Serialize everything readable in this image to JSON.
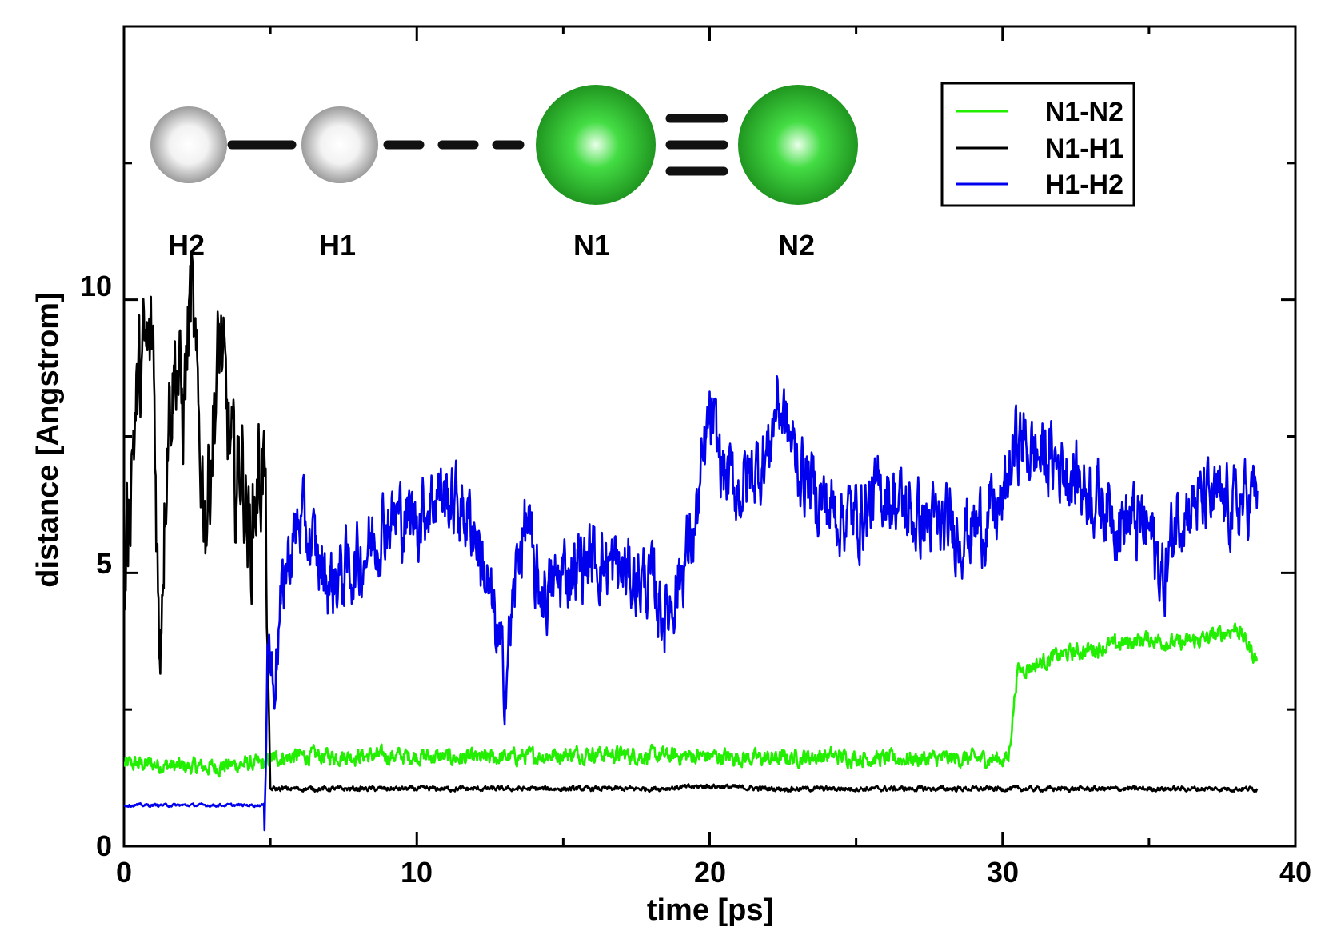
{
  "chart_data": {
    "type": "line",
    "xlabel": "time [ps]",
    "ylabel": "distance [Angstrom]",
    "xlim": [
      0,
      40
    ],
    "ylim": [
      0,
      15
    ],
    "x_ticks": [
      0,
      10,
      20,
      30,
      40
    ],
    "x_tick_labels": [
      "0",
      "10",
      "20",
      "30",
      "40"
    ],
    "y_ticks": [
      0,
      5,
      10
    ],
    "y_tick_labels": [
      "0",
      "5",
      "10"
    ],
    "y_minor_ticks": [
      2.5,
      7.5,
      12.5
    ],
    "x_minor_ticks": [
      5,
      15,
      25,
      35
    ],
    "grid": false,
    "legend_position": "top-right",
    "series": [
      {
        "name": "N1-N2",
        "color": "#22ee00",
        "x": [
          0,
          1,
          2,
          3,
          4,
          4.8,
          5,
          6,
          8,
          10,
          12,
          14,
          16,
          18,
          20,
          22,
          24,
          26,
          28,
          30,
          30.2,
          30.5,
          31,
          32,
          33,
          34,
          35,
          36,
          37,
          38,
          38.7
        ],
        "y": [
          1.5,
          1.5,
          1.45,
          1.45,
          1.5,
          1.5,
          1.6,
          1.65,
          1.65,
          1.65,
          1.6,
          1.65,
          1.7,
          1.65,
          1.65,
          1.6,
          1.65,
          1.6,
          1.6,
          1.6,
          1.6,
          3.2,
          3.3,
          3.5,
          3.6,
          3.7,
          3.8,
          3.7,
          3.8,
          4.0,
          3.4
        ]
      },
      {
        "name": "N1-H1",
        "color": "#000000",
        "x": [
          0,
          0.3,
          0.6,
          1.0,
          1.2,
          1.5,
          1.8,
          2.0,
          2.3,
          2.5,
          2.8,
          3.0,
          3.3,
          3.5,
          3.8,
          4.0,
          4.3,
          4.6,
          4.8,
          5.0,
          6,
          8,
          10,
          12,
          14,
          16,
          18,
          20,
          22,
          24,
          26,
          28,
          30,
          32,
          34,
          36,
          38,
          38.7
        ],
        "y": [
          4.6,
          7.5,
          8.8,
          9.2,
          3.5,
          8.0,
          9.0,
          7.8,
          10.2,
          8.0,
          6.0,
          7.5,
          9.3,
          7.8,
          6.5,
          7.2,
          5.5,
          6.8,
          7.0,
          1.05,
          1.05,
          1.05,
          1.05,
          1.05,
          1.05,
          1.05,
          1.05,
          1.1,
          1.05,
          1.05,
          1.05,
          1.05,
          1.05,
          1.05,
          1.05,
          1.05,
          1.05,
          1.05
        ]
      },
      {
        "name": "H1-H2",
        "color": "#0000ee",
        "x": [
          0,
          2,
          4,
          4.8,
          4.9,
          5.1,
          5.5,
          6,
          7,
          8,
          9,
          10,
          10.7,
          11.5,
          12,
          12.5,
          13,
          13.5,
          13.8,
          14,
          14.5,
          15,
          16,
          17,
          18,
          18.5,
          19,
          19.5,
          20,
          20.5,
          21,
          22,
          22.3,
          23,
          24,
          25,
          26,
          27,
          28,
          29,
          30,
          30.5,
          31,
          32,
          33,
          34,
          35,
          35.5,
          36,
          37,
          38,
          38.7
        ],
        "y": [
          0.75,
          0.75,
          0.75,
          0.75,
          4.0,
          3.0,
          5.0,
          6.0,
          4.8,
          5.2,
          6.0,
          6.0,
          6.5,
          6.2,
          5.8,
          4.5,
          3.0,
          5.5,
          6.0,
          4.8,
          4.6,
          5.0,
          5.3,
          5.0,
          4.8,
          4.2,
          5.0,
          5.8,
          7.8,
          6.8,
          6.5,
          7.2,
          8.2,
          7.0,
          6.2,
          6.0,
          6.5,
          6.0,
          5.8,
          5.8,
          6.2,
          7.5,
          7.2,
          7.0,
          6.5,
          6.0,
          5.8,
          4.8,
          6.2,
          6.3,
          6.2,
          6.5
        ]
      }
    ]
  },
  "molecule": {
    "atoms": [
      {
        "label": "H2",
        "color": "#c8c8c8"
      },
      {
        "label": "H1",
        "color": "#c8c8c8"
      },
      {
        "label": "N1",
        "color": "#2ec02e"
      },
      {
        "label": "N2",
        "color": "#2ec02e"
      }
    ]
  }
}
